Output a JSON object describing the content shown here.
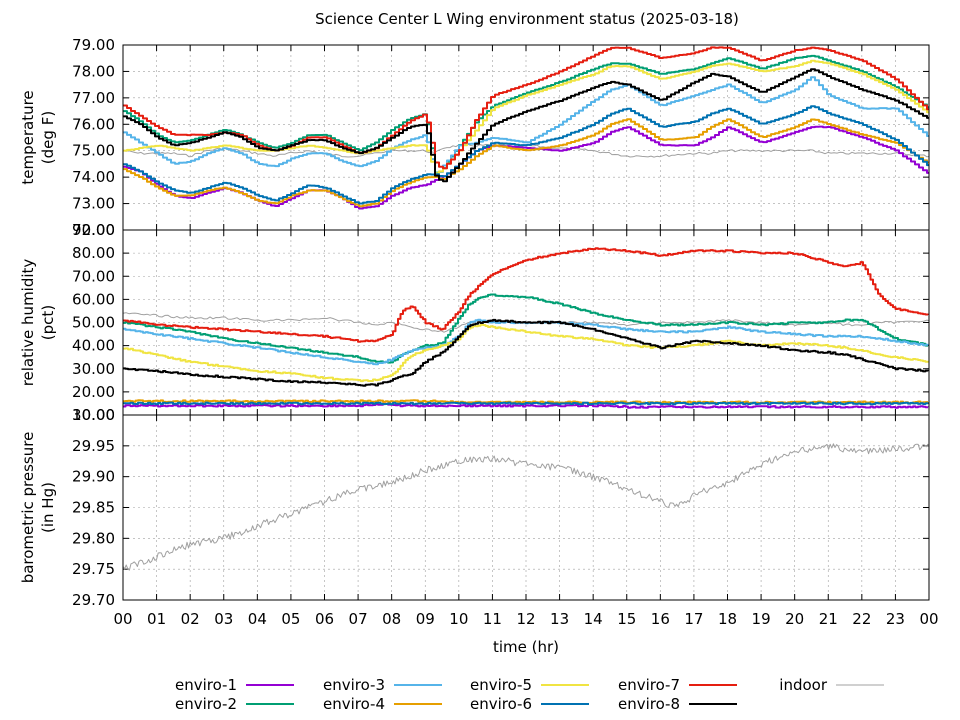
{
  "colors": {
    "enviro-1": "#9400d3",
    "enviro-2": "#009e73",
    "enviro-3": "#56b4e9",
    "enviro-4": "#e69f00",
    "enviro-5": "#f0e442",
    "enviro-6": "#0072b2",
    "enviro-7": "#e51e10",
    "enviro-8": "#000000",
    "indoor": "#a0a0a0"
  },
  "chart_data": {
    "title": "Science Center L Wing environment status (2025-03-18)",
    "type": "line",
    "xlabel": "time (hr)",
    "x_ticks": [
      "00",
      "01",
      "02",
      "03",
      "04",
      "05",
      "06",
      "07",
      "08",
      "09",
      "10",
      "11",
      "12",
      "13",
      "14",
      "15",
      "16",
      "17",
      "18",
      "19",
      "20",
      "21",
      "22",
      "23",
      "00"
    ],
    "xlim": [
      0,
      24
    ],
    "legend": {
      "position": "bottom",
      "entries": [
        "enviro-1",
        "enviro-2",
        "enviro-3",
        "enviro-4",
        "enviro-5",
        "enviro-6",
        "enviro-7",
        "enviro-8",
        "indoor"
      ]
    },
    "panels": [
      {
        "id": "temperature",
        "ylabel": [
          "temperature",
          "(deg F)"
        ],
        "ylim": [
          72.0,
          79.0
        ],
        "y_ticks": [
          "72.00",
          "73.00",
          "74.00",
          "75.00",
          "76.00",
          "77.00",
          "78.00",
          "79.00"
        ],
        "x": [
          0,
          0.5,
          1,
          1.5,
          2,
          2.5,
          3,
          3.5,
          4,
          4.5,
          5,
          5.5,
          6,
          6.5,
          7,
          7.5,
          8,
          8.5,
          9,
          9.3,
          9.5,
          10,
          10.5,
          11,
          12,
          13,
          14,
          14.5,
          15,
          16,
          17,
          17.5,
          18,
          19,
          20,
          20.5,
          21,
          22,
          23,
          24
        ],
        "series": [
          {
            "name": "enviro-1",
            "values": [
              74.4,
              74.2,
              73.7,
              73.3,
              73.2,
              73.4,
              73.6,
              73.4,
              73.1,
              72.9,
              73.2,
              73.5,
              73.5,
              73.2,
              72.8,
              72.9,
              73.3,
              73.6,
              73.7,
              73.9,
              74.0,
              74.5,
              75.0,
              75.2,
              75.1,
              75.0,
              75.3,
              75.7,
              75.9,
              75.2,
              75.2,
              75.5,
              75.9,
              75.3,
              75.7,
              75.9,
              75.9,
              75.5,
              75.0,
              74.1
            ]
          },
          {
            "name": "enviro-2",
            "values": [
              76.5,
              76.1,
              75.6,
              75.3,
              75.4,
              75.6,
              75.8,
              75.6,
              75.3,
              75.1,
              75.3,
              75.6,
              75.6,
              75.3,
              75.0,
              75.3,
              75.8,
              76.2,
              76.4,
              74.1,
              74.3,
              75.2,
              76.1,
              76.7,
              77.2,
              77.6,
              78.1,
              78.3,
              78.3,
              77.9,
              78.1,
              78.3,
              78.5,
              78.1,
              78.5,
              78.6,
              78.4,
              78.0,
              77.4,
              76.6
            ]
          },
          {
            "name": "enviro-3",
            "values": [
              75.7,
              75.3,
              74.9,
              74.5,
              74.6,
              74.9,
              75.1,
              74.9,
              74.5,
              74.4,
              74.7,
              74.9,
              74.9,
              74.6,
              74.4,
              74.6,
              75.1,
              75.4,
              75.6,
              74.0,
              74.4,
              75.2,
              75.3,
              75.5,
              75.3,
              76.0,
              76.9,
              77.3,
              77.5,
              76.7,
              77.1,
              77.3,
              77.5,
              76.8,
              77.3,
              77.8,
              77.1,
              76.6,
              76.6,
              75.5
            ]
          },
          {
            "name": "enviro-4",
            "values": [
              74.3,
              74.0,
              73.6,
              73.3,
              73.3,
              73.5,
              73.6,
              73.4,
              73.1,
              73.0,
              73.3,
              73.5,
              73.5,
              73.2,
              72.9,
              73.0,
              73.5,
              73.8,
              74.0,
              74.0,
              73.9,
              74.3,
              74.8,
              75.2,
              75.0,
              75.2,
              75.6,
              76.0,
              76.2,
              75.4,
              75.5,
              75.9,
              76.2,
              75.5,
              75.9,
              76.2,
              76.0,
              75.6,
              75.3,
              74.5
            ]
          },
          {
            "name": "enviro-5",
            "values": [
              75.0,
              75.1,
              75.2,
              75.1,
              75.0,
              75.1,
              75.2,
              75.1,
              75.0,
              75.0,
              75.1,
              75.2,
              75.1,
              75.0,
              74.9,
              75.0,
              75.1,
              75.2,
              75.2,
              74.1,
              74.3,
              75.0,
              75.8,
              76.6,
              77.1,
              77.5,
              77.9,
              78.2,
              78.2,
              77.7,
              78.0,
              78.2,
              78.3,
              78.0,
              78.2,
              78.4,
              78.3,
              77.9,
              77.3,
              76.4
            ]
          },
          {
            "name": "enviro-6",
            "values": [
              74.5,
              74.2,
              73.8,
              73.5,
              73.4,
              73.6,
              73.8,
              73.6,
              73.3,
              73.1,
              73.4,
              73.7,
              73.6,
              73.3,
              73.0,
              73.1,
              73.6,
              73.9,
              74.1,
              74.1,
              74.0,
              74.5,
              75.0,
              75.3,
              75.2,
              75.5,
              76.0,
              76.4,
              76.6,
              75.9,
              76.1,
              76.4,
              76.6,
              76.0,
              76.4,
              76.7,
              76.4,
              76.0,
              75.4,
              74.4
            ]
          },
          {
            "name": "enviro-7",
            "values": [
              76.7,
              76.3,
              75.9,
              75.6,
              75.6,
              75.6,
              75.7,
              75.6,
              75.2,
              75.0,
              75.2,
              75.5,
              75.5,
              75.2,
              74.9,
              75.1,
              75.6,
              76.1,
              76.4,
              74.5,
              74.3,
              75.0,
              76.2,
              77.1,
              77.5,
              78.0,
              78.6,
              78.9,
              78.9,
              78.5,
              78.7,
              78.9,
              78.9,
              78.4,
              78.8,
              78.9,
              78.8,
              78.4,
              77.7,
              76.5
            ]
          },
          {
            "name": "enviro-8",
            "values": [
              76.3,
              76.0,
              75.5,
              75.2,
              75.3,
              75.5,
              75.7,
              75.5,
              75.1,
              75.0,
              75.2,
              75.4,
              75.4,
              75.1,
              74.9,
              75.1,
              75.5,
              75.9,
              76.0,
              74.0,
              73.8,
              74.5,
              75.3,
              76.0,
              76.5,
              76.9,
              77.4,
              77.6,
              77.5,
              76.9,
              77.6,
              77.9,
              77.8,
              77.2,
              77.8,
              78.1,
              77.8,
              77.3,
              76.9,
              76.2
            ]
          },
          {
            "name": "indoor",
            "values": [
              75.0,
              74.9,
              74.9,
              74.9,
              74.8,
              75.0,
              75.1,
              75.0,
              74.9,
              74.8,
              74.9,
              75.0,
              74.9,
              74.8,
              74.8,
              74.9,
              75.0,
              75.0,
              75.0,
              74.9,
              75.1,
              75.2,
              75.2,
              75.2,
              75.2,
              75.1,
              75.0,
              74.9,
              74.8,
              74.8,
              74.9,
              74.9,
              75.0,
              75.0,
              75.0,
              75.0,
              74.9,
              74.9,
              74.9,
              74.8
            ]
          }
        ]
      },
      {
        "id": "humidity",
        "ylabel": [
          "relative humidity",
          "(pct)"
        ],
        "ylim": [
          10.0,
          90.0
        ],
        "y_ticks": [
          "10.00",
          "20.00",
          "30.00",
          "40.00",
          "50.00",
          "60.00",
          "70.00",
          "80.00",
          "90.00"
        ],
        "x": [
          0,
          1,
          2,
          3,
          4,
          5,
          6,
          7,
          7.5,
          8,
          8.3,
          8.6,
          9,
          9.5,
          10,
          10.3,
          10.6,
          11,
          12,
          13,
          14,
          15,
          16,
          17,
          18,
          19,
          20,
          21,
          21.5,
          22,
          22.5,
          23,
          24
        ],
        "series": [
          {
            "name": "enviro-1",
            "values": [
              14.0,
              14.0,
              14.0,
              14.0,
              14.0,
              14.0,
              14.0,
              14.0,
              14.5,
              14.5,
              14.0,
              14.0,
              14.0,
              14.0,
              14.0,
              14.0,
              14.0,
              14.0,
              14.0,
              14.0,
              14.0,
              13.5,
              13.5,
              13.5,
              13.5,
              13.5,
              13.5,
              13.5,
              13.5,
              13.5,
              13.5,
              13.5,
              13.5
            ]
          },
          {
            "name": "enviro-2",
            "values": [
              50.0,
              48.0,
              46.0,
              43.0,
              41.0,
              39.0,
              37.0,
              35.0,
              33.0,
              33.0,
              36.0,
              38.0,
              40.0,
              41.0,
              52.0,
              58.0,
              61.0,
              62.0,
              61.0,
              58.0,
              54.0,
              51.0,
              49.0,
              49.0,
              50.0,
              49.0,
              50.0,
              50.0,
              51.0,
              51.0,
              47.0,
              43.0,
              40.0
            ]
          },
          {
            "name": "enviro-3",
            "values": [
              47.0,
              45.0,
              43.0,
              41.0,
              39.0,
              37.0,
              35.0,
              33.0,
              32.0,
              34.0,
              36.0,
              38.0,
              39.0,
              40.0,
              44.0,
              50.0,
              51.0,
              50.0,
              50.0,
              50.0,
              49.0,
              47.0,
              46.0,
              46.0,
              48.0,
              46.0,
              45.0,
              44.0,
              44.0,
              44.0,
              43.0,
              42.0,
              40.0
            ]
          },
          {
            "name": "enviro-4",
            "values": [
              16.0,
              16.0,
              16.0,
              16.0,
              16.0,
              16.0,
              16.0,
              16.0,
              16.0,
              16.0,
              16.0,
              16.0,
              16.0,
              16.0,
              15.5,
              15.5,
              15.5,
              15.5,
              15.5,
              15.5,
              15.5,
              15.5,
              15.5,
              15.5,
              15.5,
              15.5,
              15.5,
              15.5,
              15.5,
              15.5,
              15.5,
              15.5,
              15.5
            ]
          },
          {
            "name": "enviro-5",
            "values": [
              39.0,
              36.0,
              33.0,
              31.0,
              29.0,
              28.0,
              26.0,
              25.0,
              25.0,
              27.0,
              32.0,
              36.0,
              38.0,
              40.0,
              43.0,
              48.0,
              49.0,
              48.0,
              46.0,
              44.0,
              43.0,
              40.0,
              39.0,
              40.0,
              42.0,
              40.0,
              41.0,
              40.0,
              39.0,
              38.0,
              36.0,
              35.0,
              33.0
            ]
          },
          {
            "name": "enviro-6",
            "values": [
              15.0,
              15.0,
              15.0,
              15.0,
              15.0,
              15.0,
              15.0,
              15.0,
              15.0,
              15.0,
              15.0,
              15.0,
              15.0,
              15.0,
              15.0,
              15.0,
              15.0,
              15.0,
              15.0,
              15.0,
              15.0,
              15.0,
              15.0,
              15.0,
              15.0,
              15.0,
              15.0,
              15.0,
              15.0,
              15.0,
              15.0,
              15.0,
              15.0
            ]
          },
          {
            "name": "enviro-7",
            "values": [
              51.0,
              49.0,
              48.0,
              47.0,
              46.0,
              45.0,
              44.0,
              42.0,
              42.0,
              45.0,
              55.0,
              57.0,
              50.0,
              47.0,
              55.0,
              62.0,
              66.0,
              71.0,
              77.0,
              80.0,
              82.0,
              81.0,
              79.0,
              81.0,
              81.0,
              80.0,
              80.0,
              76.0,
              74.0,
              76.0,
              62.0,
              56.0,
              53.0
            ]
          },
          {
            "name": "enviro-8",
            "values": [
              30.0,
              29.0,
              27.5,
              26.5,
              25.5,
              24.5,
              24.0,
              23.0,
              23.0,
              25.0,
              27.0,
              28.0,
              33.0,
              37.0,
              44.0,
              49.0,
              50.0,
              51.0,
              50.0,
              50.0,
              47.0,
              43.0,
              39.0,
              42.0,
              41.0,
              40.0,
              38.0,
              37.0,
              36.0,
              34.0,
              32.0,
              30.0,
              29.0
            ]
          },
          {
            "name": "indoor",
            "values": [
              54.0,
              53.0,
              52.0,
              52.0,
              51.0,
              51.0,
              52.0,
              50.0,
              49.0,
              50.0,
              49.0,
              48.0,
              47.0,
              46.0,
              48.0,
              50.0,
              51.0,
              51.0,
              50.0,
              50.0,
              50.0,
              49.0,
              50.0,
              50.0,
              51.0,
              50.0,
              49.0,
              50.0,
              49.0,
              49.0,
              50.0,
              50.0,
              51.0
            ]
          }
        ]
      },
      {
        "id": "pressure",
        "ylabel": [
          "barometric pressure",
          "(in Hg)"
        ],
        "ylim": [
          29.7,
          30.0
        ],
        "y_ticks": [
          "29.70",
          "29.75",
          "29.80",
          "29.85",
          "29.90",
          "29.95",
          "30.00"
        ],
        "x": [
          0,
          1,
          2,
          3,
          4,
          5,
          6,
          7,
          8,
          9,
          10,
          11,
          12,
          13,
          14,
          15,
          16,
          16.5,
          17,
          18,
          19,
          20,
          21,
          22,
          23,
          24
        ],
        "series": [
          {
            "name": "indoor",
            "values": [
              29.75,
              29.77,
              29.79,
              29.8,
              29.82,
              29.84,
              29.86,
              29.88,
              29.89,
              29.91,
              29.925,
              29.93,
              29.92,
              29.915,
              29.9,
              29.88,
              29.86,
              29.85,
              29.87,
              29.89,
              29.92,
              29.94,
              29.95,
              29.94,
              29.945,
              29.95
            ]
          }
        ]
      }
    ]
  }
}
